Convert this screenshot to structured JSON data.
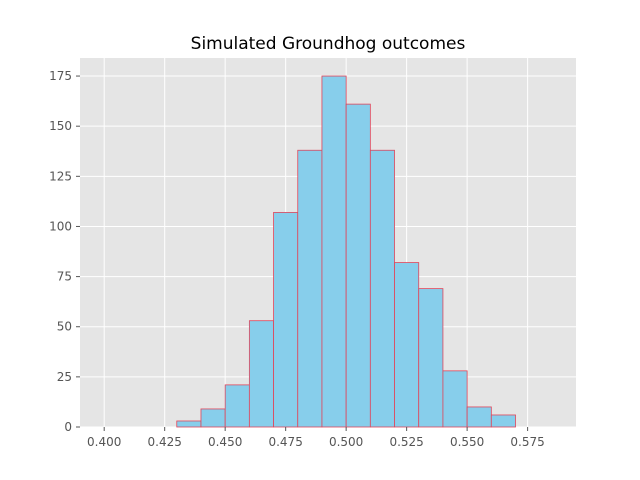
{
  "chart_data": {
    "type": "bar",
    "title": "Simulated Groundhog outcomes",
    "xlabel": "",
    "ylabel": "",
    "xlim": [
      0.39,
      0.595
    ],
    "ylim": [
      0,
      184
    ],
    "bin_width": 0.01,
    "bins": [
      {
        "start": 0.43,
        "count": 3
      },
      {
        "start": 0.44,
        "count": 9
      },
      {
        "start": 0.45,
        "count": 21
      },
      {
        "start": 0.46,
        "count": 53
      },
      {
        "start": 0.47,
        "count": 107
      },
      {
        "start": 0.48,
        "count": 138
      },
      {
        "start": 0.49,
        "count": 175
      },
      {
        "start": 0.5,
        "count": 161
      },
      {
        "start": 0.51,
        "count": 138
      },
      {
        "start": 0.52,
        "count": 82
      },
      {
        "start": 0.53,
        "count": 69
      },
      {
        "start": 0.54,
        "count": 28
      },
      {
        "start": 0.55,
        "count": 10
      },
      {
        "start": 0.56,
        "count": 6
      }
    ],
    "x_ticks": [
      {
        "value": 0.4,
        "label": "0.400"
      },
      {
        "value": 0.425,
        "label": "0.425"
      },
      {
        "value": 0.45,
        "label": "0.450"
      },
      {
        "value": 0.475,
        "label": "0.475"
      },
      {
        "value": 0.5,
        "label": "0.500"
      },
      {
        "value": 0.525,
        "label": "0.525"
      },
      {
        "value": 0.55,
        "label": "0.550"
      },
      {
        "value": 0.575,
        "label": "0.575"
      }
    ],
    "y_ticks": [
      {
        "value": 0,
        "label": "0"
      },
      {
        "value": 25,
        "label": "25"
      },
      {
        "value": 50,
        "label": "50"
      },
      {
        "value": 75,
        "label": "75"
      },
      {
        "value": 100,
        "label": "100"
      },
      {
        "value": 125,
        "label": "125"
      },
      {
        "value": 150,
        "label": "150"
      },
      {
        "value": 175,
        "label": "175"
      }
    ],
    "grid": true,
    "colors": {
      "plot_background": "#e5e5e5",
      "grid": "#ffffff",
      "bar_fill": "#87ceeb",
      "bar_edge": "#e0455a",
      "tick_label": "#555555",
      "tick_mark": "#555555"
    }
  }
}
